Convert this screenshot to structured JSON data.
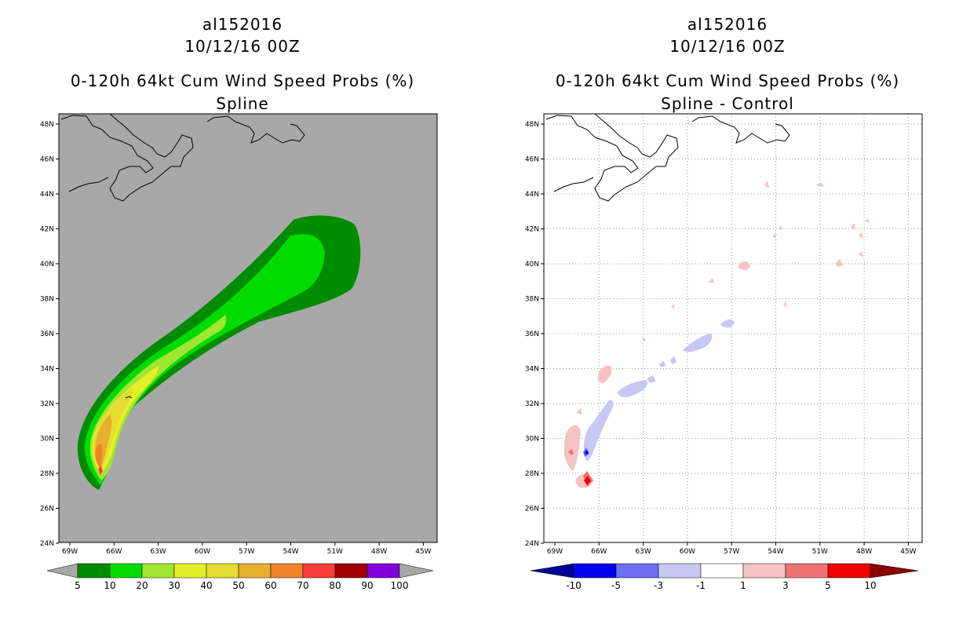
{
  "chart_data": [
    {
      "type": "heatmap",
      "storm_id": "al152016",
      "datetime": "10/12/16 00Z",
      "title": "0-120h 64kt Cum Wind Speed Probs (%)",
      "subtitle": "Spline",
      "x_ticks": [
        "69W",
        "66W",
        "63W",
        "60W",
        "57W",
        "54W",
        "51W",
        "48W",
        "45W"
      ],
      "y_ticks": [
        "48N",
        "46N",
        "44N",
        "42N",
        "40N",
        "38N",
        "36N",
        "34N",
        "32N",
        "30N",
        "28N",
        "26N",
        "24N"
      ],
      "colorbar": {
        "labels": [
          "5",
          "10",
          "20",
          "30",
          "40",
          "50",
          "60",
          "70",
          "80",
          "90",
          "100"
        ],
        "colors": [
          "#008c00",
          "#00dc00",
          "#a0e632",
          "#e6f028",
          "#e6dc32",
          "#e6af2d",
          "#f08228",
          "#fa3c3c",
          "#a00000",
          "#8200dc"
        ]
      },
      "background": "#a8a8a8"
    },
    {
      "type": "heatmap",
      "storm_id": "al152016",
      "datetime": "10/12/16 00Z",
      "title": "0-120h 64kt Cum Wind Speed Probs (%)",
      "subtitle": "Spline - Control",
      "x_ticks": [
        "69W",
        "66W",
        "63W",
        "60W",
        "57W",
        "54W",
        "51W",
        "48W",
        "45W"
      ],
      "y_ticks": [
        "48N",
        "46N",
        "44N",
        "42N",
        "40N",
        "38N",
        "36N",
        "34N",
        "32N",
        "30N",
        "28N",
        "26N",
        "24N"
      ],
      "colorbar": {
        "labels": [
          "-10",
          "-5",
          "-3",
          "-1",
          "1",
          "3",
          "5",
          "10"
        ],
        "colors": [
          "#000096",
          "#0000f0",
          "#6e6ef0",
          "#c8c8f5",
          "#ffffff",
          "#f5c3c3",
          "#f07373",
          "#f00000",
          "#8c0000"
        ]
      }
    }
  ]
}
